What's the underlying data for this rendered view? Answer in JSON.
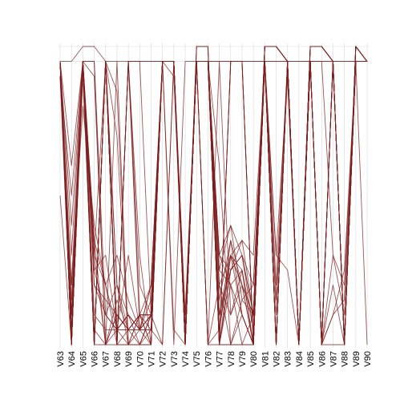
{
  "chart_data": {
    "type": "line",
    "subtype": "parallel-coordinates",
    "title": "",
    "xlabel": "",
    "ylabel": "",
    "x": [
      "V63",
      "V64",
      "V65",
      "V66",
      "V67",
      "V68",
      "V69",
      "V70",
      "V71",
      "V72",
      "V73",
      "V74",
      "V75",
      "V76",
      "V77",
      "V78",
      "V79",
      "V80",
      "V81",
      "V82",
      "V83",
      "V84",
      "V85",
      "V86",
      "V87",
      "V88",
      "V89",
      "V90"
    ],
    "ylim": [
      0,
      1
    ],
    "grid": true,
    "legend": "none",
    "line_color": "#7f1d1d",
    "grid_color": "#d9d9d9",
    "series": [
      {
        "values": [
          0.95,
          0.0,
          0.95,
          0.0,
          0.95,
          0.0,
          0.95,
          0.2,
          0.1,
          0.95,
          0.95,
          0.0,
          0.95,
          0.95,
          0.0,
          0.95,
          0.95,
          0.0,
          1.0,
          1.0,
          0.95,
          0.0,
          1.0,
          1.0,
          0.95,
          0.0,
          1.0,
          0.95
        ]
      },
      {
        "values": [
          0.95,
          0.05,
          0.95,
          0.0,
          0.95,
          0.0,
          0.95,
          0.1,
          0.1,
          0.95,
          0.95,
          0.0,
          0.95,
          0.95,
          0.0,
          0.95,
          0.95,
          0.0,
          1.0,
          1.0,
          0.95,
          0.0,
          1.0,
          1.0,
          0.95,
          0.0,
          1.0,
          0.95
        ]
      },
      {
        "values": [
          0.95,
          0.1,
          0.95,
          0.0,
          0.95,
          0.0,
          0.95,
          0.05,
          0.2,
          0.95,
          0.95,
          0.0,
          1.0,
          1.0,
          0.0,
          0.95,
          0.95,
          0.0,
          1.0,
          1.0,
          0.95,
          0.0,
          1.0,
          1.0,
          0.95,
          0.0,
          1.0,
          0.95
        ]
      },
      {
        "values": [
          0.95,
          0.0,
          0.9,
          0.0,
          0.95,
          0.2,
          0.0,
          0.05,
          0.05,
          0.95,
          0.95,
          0.0,
          1.0,
          1.0,
          0.0,
          0.3,
          0.2,
          0.0,
          1.0,
          1.0,
          0.95,
          0.0,
          1.0,
          1.0,
          0.95,
          0.0,
          1.0,
          0.95
        ]
      },
      {
        "values": [
          0.9,
          0.15,
          0.95,
          0.3,
          0.95,
          0.05,
          0.3,
          0.05,
          0.2,
          0.95,
          0.95,
          0.0,
          1.0,
          1.0,
          0.05,
          0.35,
          0.1,
          0.0,
          1.0,
          1.0,
          0.95,
          0.0,
          1.0,
          1.0,
          0.95,
          0.0,
          1.0,
          0.95
        ]
      },
      {
        "values": [
          0.95,
          0.2,
          0.95,
          0.35,
          0.0,
          0.1,
          0.05,
          0.1,
          0.1,
          0.95,
          0.95,
          0.0,
          0.95,
          0.95,
          0.0,
          0.25,
          0.3,
          0.1,
          1.0,
          1.0,
          0.95,
          0.0,
          1.0,
          1.0,
          0.95,
          0.0,
          1.0,
          0.95
        ]
      },
      {
        "values": [
          0.95,
          0.3,
          0.95,
          0.25,
          0.1,
          0.05,
          0.1,
          0.05,
          0.15,
          0.95,
          0.95,
          0.0,
          0.95,
          0.95,
          0.1,
          0.3,
          0.25,
          0.05,
          1.0,
          1.0,
          0.95,
          0.0,
          1.0,
          1.0,
          0.95,
          0.0,
          1.0,
          0.95
        ]
      },
      {
        "values": [
          0.95,
          0.4,
          0.95,
          0.2,
          0.15,
          0.1,
          0.05,
          0.1,
          0.05,
          0.95,
          0.95,
          0.0,
          0.95,
          0.95,
          0.15,
          0.35,
          0.2,
          0.1,
          1.0,
          1.0,
          0.95,
          0.0,
          1.0,
          1.0,
          0.95,
          0.0,
          1.0,
          0.95
        ]
      },
      {
        "values": [
          0.9,
          0.5,
          0.95,
          0.3,
          0.2,
          0.05,
          0.1,
          0.05,
          0.1,
          0.95,
          0.95,
          0.0,
          0.95,
          0.95,
          0.1,
          0.25,
          0.3,
          0.05,
          1.0,
          1.0,
          0.95,
          0.0,
          1.0,
          1.0,
          0.95,
          0.0,
          1.0,
          0.95
        ]
      },
      {
        "values": [
          0.95,
          0.6,
          0.95,
          0.25,
          0.3,
          0.05,
          0.05,
          0.1,
          0.1,
          0.95,
          0.95,
          0.0,
          0.95,
          0.95,
          0.05,
          0.3,
          0.35,
          0.1,
          1.0,
          1.0,
          0.95,
          0.0,
          1.0,
          1.0,
          0.95,
          0.0,
          1.0,
          0.95
        ]
      },
      {
        "values": [
          0.95,
          0.05,
          0.95,
          0.0,
          0.95,
          0.0,
          0.95,
          0.3,
          0.0,
          0.95,
          0.95,
          0.0,
          0.95,
          0.95,
          0.0,
          0.95,
          0.95,
          0.0,
          0.95,
          0.0,
          0.95,
          0.0,
          0.95,
          0.0,
          0.95,
          0.0,
          0.95,
          0.95
        ]
      },
      {
        "values": [
          0.95,
          0.0,
          0.95,
          0.3,
          0.0,
          0.1,
          0.05,
          0.05,
          0.05,
          0.0,
          0.95,
          0.0,
          0.95,
          0.0,
          0.95,
          0.1,
          0.2,
          0.0,
          0.95,
          0.0,
          0.95,
          0.0,
          0.95,
          0.0,
          0.95,
          0.0,
          0.95,
          0.95
        ]
      },
      {
        "values": [
          0.95,
          0.1,
          0.95,
          0.2,
          0.1,
          0.2,
          0.1,
          0.05,
          0.0,
          0.95,
          0.95,
          0.05,
          0.95,
          0.95,
          0.25,
          0.4,
          0.15,
          0.2,
          0.95,
          0.3,
          0.25,
          0.0,
          0.95,
          0.0,
          0.2,
          0.0,
          0.95,
          0.95
        ]
      },
      {
        "values": [
          0.95,
          0.0,
          0.95,
          0.05,
          0.0,
          0.15,
          0.05,
          0.1,
          0.2,
          0.95,
          0.0,
          0.95,
          0.95,
          0.0,
          0.2,
          0.1,
          0.25,
          0.0,
          0.95,
          0.2,
          0.95,
          0.0,
          0.95,
          0.0,
          0.1,
          0.15,
          0.95,
          0.0
        ]
      },
      {
        "values": [
          0.95,
          0.0,
          0.95,
          0.1,
          0.05,
          0.05,
          0.0,
          0.0,
          0.1,
          0.95,
          0.9,
          0.0,
          0.95,
          0.95,
          0.3,
          0.2,
          0.25,
          0.0,
          0.95,
          0.15,
          0.9,
          0.0,
          0.95,
          0.95,
          0.3,
          0.2,
          0.95,
          0.95
        ]
      },
      {
        "values": [
          0.95,
          0.0,
          0.95,
          0.9,
          0.0,
          0.0,
          0.0,
          0.0,
          0.0,
          0.95,
          0.95,
          0.05,
          0.95,
          0.0,
          0.0,
          0.0,
          0.0,
          0.0,
          0.95,
          0.0,
          0.95,
          0.0,
          0.95,
          0.0,
          0.0,
          0.0,
          0.95,
          0.95
        ]
      },
      {
        "values": [
          0.5,
          0.0,
          0.95,
          0.0,
          0.95,
          0.2,
          0.05,
          0.1,
          0.1,
          0.95,
          0.95,
          0.0,
          0.95,
          0.95,
          0.2,
          0.3,
          0.1,
          0.0,
          0.95,
          0.0,
          0.95,
          0.0,
          0.95,
          0.0,
          0.95,
          0.0,
          0.95,
          0.95
        ]
      },
      {
        "values": [
          0.95,
          0.0,
          0.95,
          0.95,
          0.1,
          0.05,
          0.1,
          0.0,
          0.05,
          0.95,
          0.95,
          0.1,
          0.95,
          0.95,
          0.3,
          0.25,
          0.35,
          0.3,
          0.95,
          0.0,
          0.95,
          0.0,
          0.95,
          0.0,
          0.95,
          0.0,
          0.95,
          0.95
        ]
      },
      {
        "values": [
          0.9,
          0.0,
          0.95,
          0.0,
          0.95,
          0.0,
          0.95,
          0.95,
          0.95,
          0.95,
          0.05,
          0.0,
          0.95,
          0.95,
          0.25,
          0.2,
          0.1,
          0.0,
          0.95,
          0.0,
          0.95,
          0.0,
          0.95,
          0.0,
          0.95,
          0.0,
          0.95,
          0.95
        ]
      },
      {
        "values": [
          0.95,
          0.0,
          0.95,
          0.95,
          0.0,
          0.05,
          0.05,
          0.05,
          0.1,
          0.95,
          0.95,
          0.0,
          0.95,
          0.95,
          0.0,
          0.0,
          0.0,
          0.0,
          0.95,
          0.0,
          0.95,
          0.0,
          0.95,
          0.0,
          0.95,
          0.0,
          0.95,
          0.95
        ]
      },
      {
        "values": [
          0.95,
          0.1,
          0.95,
          0.0,
          0.95,
          0.85,
          0.0,
          0.0,
          0.1,
          0.95,
          0.95,
          0.0,
          0.95,
          0.95,
          0.0,
          0.25,
          0.3,
          0.1,
          0.95,
          0.0,
          0.95,
          0.0,
          0.95,
          0.0,
          0.95,
          0.0,
          0.95,
          0.95
        ]
      },
      {
        "values": [
          0.95,
          0.0,
          0.95,
          0.0,
          0.0,
          0.95,
          0.0,
          0.1,
          0.0,
          0.95,
          0.95,
          0.0,
          0.95,
          0.95,
          0.6,
          0.0,
          0.1,
          0.0,
          0.95,
          0.0,
          0.95,
          0.0,
          0.95,
          0.0,
          0.95,
          0.0,
          0.95,
          0.95
        ]
      },
      {
        "values": [
          0.95,
          0.0,
          0.95,
          0.0,
          0.95,
          0.0,
          0.0,
          0.1,
          0.0,
          0.95,
          0.95,
          0.0,
          0.95,
          0.95,
          0.2,
          0.0,
          0.15,
          0.1,
          0.95,
          0.0,
          0.95,
          0.0,
          0.95,
          0.0,
          0.95,
          0.0,
          0.95,
          0.95
        ]
      },
      {
        "values": [
          0.95,
          0.0,
          0.95,
          0.0,
          0.95,
          0.7,
          0.0,
          0.0,
          0.0,
          0.95,
          0.95,
          0.0,
          0.95,
          0.95,
          0.0,
          0.2,
          0.0,
          0.1,
          0.95,
          0.0,
          0.95,
          0.0,
          0.95,
          0.0,
          0.95,
          0.0,
          0.95,
          0.95
        ]
      },
      {
        "values": [
          0.95,
          0.95,
          1.0,
          1.0,
          0.95,
          0.95,
          0.95,
          0.95,
          0.1,
          0.0,
          0.95,
          0.0,
          0.95,
          0.95,
          0.95,
          0.95,
          0.95,
          0.95,
          0.95,
          0.95,
          0.95,
          0.95,
          0.95,
          0.95,
          0.95,
          0.95,
          0.95,
          0.95
        ]
      },
      {
        "values": [
          0.95,
          0.0,
          0.95,
          0.0,
          0.95,
          0.0,
          0.95,
          0.95,
          0.95,
          0.95,
          0.95,
          0.0,
          0.95,
          0.95,
          0.95,
          0.95,
          0.95,
          0.95,
          0.95,
          0.95,
          0.95,
          0.95,
          0.95,
          0.95,
          0.95,
          0.95,
          0.95,
          0.95
        ]
      },
      {
        "values": [
          0.9,
          0.2,
          0.8,
          0.4,
          0.2,
          0.0,
          0.05,
          0.0,
          0.1,
          0.95,
          0.95,
          0.1,
          0.95,
          0.0,
          0.05,
          0.3,
          0.2,
          0.1,
          0.95,
          0.3,
          0.9,
          0.0,
          0.95,
          0.0,
          0.1,
          0.25,
          0.95,
          0.95
        ]
      },
      {
        "values": [
          0.95,
          0.0,
          0.95,
          0.35,
          0.2,
          0.3,
          0.15,
          0.05,
          0.1,
          0.95,
          0.95,
          0.0,
          0.95,
          0.95,
          0.3,
          0.4,
          0.3,
          0.2,
          0.95,
          0.1,
          0.95,
          0.0,
          0.95,
          0.0,
          0.3,
          0.1,
          0.95,
          0.95
        ]
      }
    ]
  }
}
